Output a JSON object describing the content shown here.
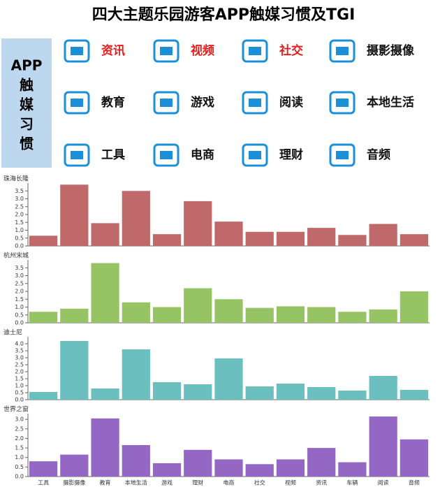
{
  "title": "四大主题乐园游客APP触媒习惯及TGI",
  "legend": {
    "label": [
      "APP",
      "触",
      "媒",
      "习",
      "惯"
    ],
    "color": "#bdd7ee",
    "icon_color": "#1b8fd8",
    "items": [
      {
        "text": "资讯",
        "color": "#e02020"
      },
      {
        "text": "视频",
        "color": "#e02020"
      },
      {
        "text": "社交",
        "color": "#e02020"
      },
      {
        "text": "摄影摄像",
        "color": "#111111"
      },
      {
        "text": "教育",
        "color": "#111111"
      },
      {
        "text": "游戏",
        "color": "#111111"
      },
      {
        "text": "阅读",
        "color": "#111111"
      },
      {
        "text": "本地生活",
        "color": "#111111"
      },
      {
        "text": "工具",
        "color": "#111111"
      },
      {
        "text": "电商",
        "color": "#111111"
      },
      {
        "text": "理财",
        "color": "#111111"
      },
      {
        "text": "音频",
        "color": "#111111"
      }
    ]
  },
  "chart_data": [
    {
      "type": "bar",
      "title": "珠海长隆",
      "color": "#c0696a",
      "ylim": [
        0,
        4.0
      ],
      "yticks": [
        {
          "value": 0,
          "label": "0.0"
        },
        {
          "value": 0.5,
          "label": "0.5"
        },
        {
          "value": 1,
          "label": "1.0"
        },
        {
          "value": 1.5,
          "label": "1.5"
        },
        {
          "value": 2,
          "label": "2.0"
        },
        {
          "value": 2.5,
          "label": "2.5"
        },
        {
          "value": 3,
          "label": "3.0"
        },
        {
          "value": 3.5,
          "label": "3.5"
        }
      ],
      "values": [
        0.65,
        3.9,
        1.45,
        3.5,
        0.75,
        2.85,
        1.55,
        0.9,
        0.9,
        1.15,
        0.7,
        1.4,
        0.75
      ]
    },
    {
      "type": "bar",
      "title": "杭州宋城",
      "color": "#96c465",
      "ylim": [
        0,
        4.0
      ],
      "yticks": [
        {
          "value": 0,
          "label": "0.0"
        },
        {
          "value": 0.5,
          "label": "0.5"
        },
        {
          "value": 1,
          "label": "1.0"
        },
        {
          "value": 1.5,
          "label": "1.5"
        },
        {
          "value": 2,
          "label": "2.0"
        },
        {
          "value": 2.5,
          "label": "2.5"
        },
        {
          "value": 3,
          "label": "3.0"
        },
        {
          "value": 3.5,
          "label": "3.5"
        }
      ],
      "values": [
        0.7,
        0.9,
        3.8,
        1.3,
        1.0,
        2.2,
        1.5,
        0.95,
        1.05,
        1.0,
        0.7,
        0.85,
        2.0
      ]
    },
    {
      "type": "bar",
      "title": "迪士尼",
      "color": "#6bbfbf",
      "ylim": [
        0,
        4.5
      ],
      "yticks": [
        {
          "value": 0,
          "label": "0.0"
        },
        {
          "value": 0.5,
          "label": "0.5"
        },
        {
          "value": 1,
          "label": "1.0"
        },
        {
          "value": 1.5,
          "label": "1.5"
        },
        {
          "value": 2,
          "label": "2.0"
        },
        {
          "value": 2.5,
          "label": "2.5"
        },
        {
          "value": 3,
          "label": "3.0"
        },
        {
          "value": 3.5,
          "label": "3.5"
        },
        {
          "value": 4,
          "label": "4.0"
        }
      ],
      "values": [
        0.55,
        4.2,
        0.8,
        3.6,
        1.25,
        1.1,
        2.95,
        0.95,
        1.15,
        0.9,
        0.65,
        1.7,
        0.7
      ]
    },
    {
      "type": "bar",
      "title": "世界之窗",
      "color": "#9467c4",
      "ylim": [
        0,
        3.3
      ],
      "yticks": [
        {
          "value": 0,
          "label": "0.0"
        },
        {
          "value": 0.5,
          "label": "0.5"
        },
        {
          "value": 1,
          "label": "1.0"
        },
        {
          "value": 1.5,
          "label": "1.5"
        },
        {
          "value": 2,
          "label": "2.0"
        },
        {
          "value": 2.5,
          "label": "2.5"
        },
        {
          "value": 3,
          "label": "3.0"
        }
      ],
      "categories": [
        "工具",
        "摄影摄像",
        "教育",
        "本地生活",
        "游戏",
        "理财",
        "电商",
        "社交",
        "视频",
        "资讯",
        "车辆",
        "阅读",
        "音频"
      ],
      "values": [
        0.8,
        1.15,
        3.05,
        1.65,
        0.7,
        1.4,
        0.9,
        0.65,
        0.9,
        1.5,
        0.75,
        3.15,
        1.95
      ]
    }
  ]
}
